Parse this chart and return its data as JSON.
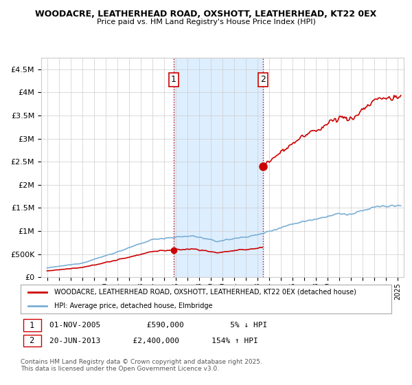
{
  "title1": "WOODACRE, LEATHERHEAD ROAD, OXSHOTT, LEATHERHEAD, KT22 0EX",
  "title2": "Price paid vs. HM Land Registry's House Price Index (HPI)",
  "legend_line1": "WOODACRE, LEATHERHEAD ROAD, OXSHOTT, LEATHERHEAD, KT22 0EX (detached house)",
  "legend_line2": "HPI: Average price, detached house, Elmbridge",
  "sale1_date": "01-NOV-2005",
  "sale1_price": "£590,000",
  "sale1_hpi": "5% ↓ HPI",
  "sale2_date": "20-JUN-2013",
  "sale2_price": "£2,400,000",
  "sale2_hpi": "154% ↑ HPI",
  "footer": "Contains HM Land Registry data © Crown copyright and database right 2025.\nThis data is licensed under the Open Government Licence v3.0.",
  "sale1_year": 2005.83,
  "sale2_year": 2013.47,
  "sale1_price_val": 590000,
  "sale2_price_val": 2400000,
  "hpi_color": "#7bafd4",
  "property_color": "#cc0000",
  "shade_color": "#ddeeff",
  "vline_color": "#cc0000",
  "ylim_max": 4750000,
  "ylim_min": 0,
  "xlim_min": 1994.5,
  "xlim_max": 2025.5,
  "background_color": "#ffffff",
  "grid_color": "#cccccc"
}
